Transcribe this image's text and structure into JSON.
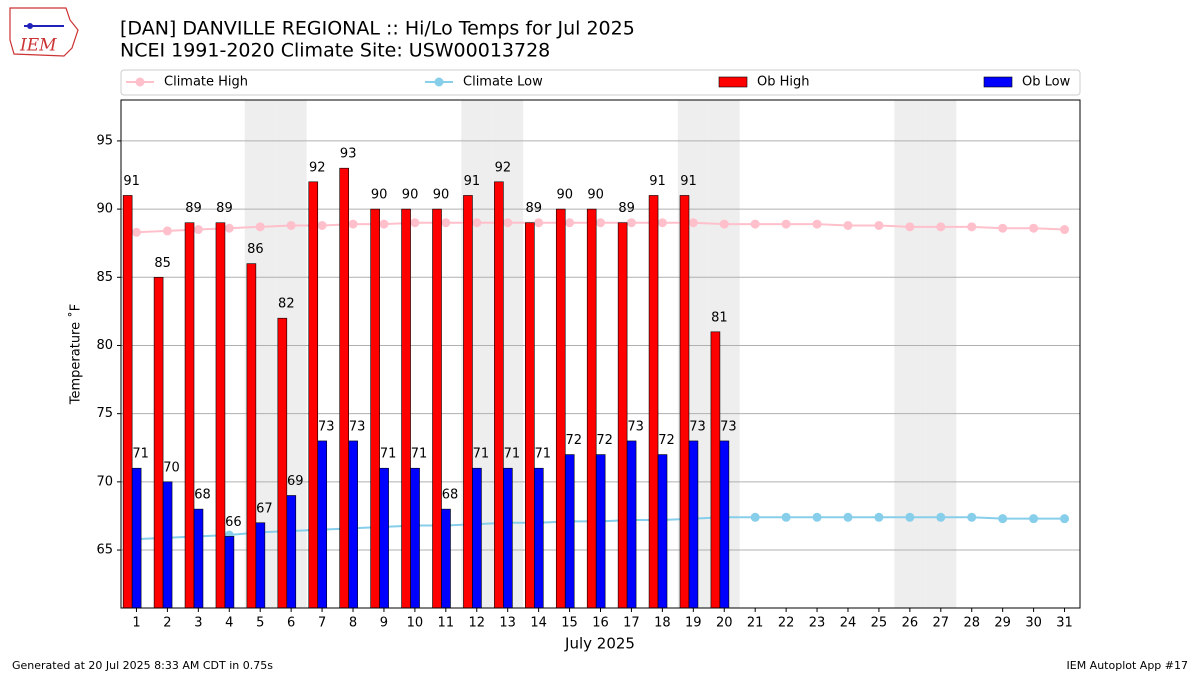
{
  "logo_text": "IEM",
  "footer_left": "Generated at 20 Jul 2025 8:33 AM CDT in 0.75s",
  "footer_right": "IEM Autoplot App #17",
  "chart_data": {
    "type": "bar",
    "title": "[DAN] DANVILLE REGIONAL :: Hi/Lo Temps for Jul 2025",
    "subtitle": "NCEI 1991-2020 Climate Site: USW00013728",
    "x_label": "July 2025",
    "y_label": "Temperature ˚F",
    "x": [
      1,
      2,
      3,
      4,
      5,
      6,
      7,
      8,
      9,
      10,
      11,
      12,
      13,
      14,
      15,
      16,
      17,
      18,
      19,
      20,
      21,
      22,
      23,
      24,
      25,
      26,
      27,
      28,
      29,
      30,
      31
    ],
    "xlim": [
      0.5,
      31.5
    ],
    "xticks": [
      1,
      2,
      3,
      4,
      5,
      6,
      7,
      8,
      9,
      10,
      11,
      12,
      13,
      14,
      15,
      16,
      17,
      18,
      19,
      20,
      21,
      22,
      23,
      24,
      25,
      26,
      27,
      28,
      29,
      30,
      31
    ],
    "ylim": [
      60.75,
      98
    ],
    "yticks": [
      65,
      70,
      75,
      80,
      85,
      90,
      95
    ],
    "grid": true,
    "shaded_days": [
      5,
      6,
      12,
      13,
      19,
      20,
      26,
      27
    ],
    "series": [
      {
        "name": "Climate High",
        "kind": "line",
        "color": "#ffc0cb",
        "values": [
          88.3,
          88.4,
          88.5,
          88.6,
          88.7,
          88.8,
          88.8,
          88.9,
          88.9,
          89.0,
          89.0,
          89.0,
          89.0,
          89.0,
          89.0,
          89.0,
          89.0,
          89.0,
          89.0,
          88.9,
          88.9,
          88.9,
          88.9,
          88.8,
          88.8,
          88.7,
          88.7,
          88.7,
          88.6,
          88.6,
          88.5
        ]
      },
      {
        "name": "Climate Low",
        "kind": "line",
        "color": "#87ceeb",
        "values": [
          65.8,
          65.9,
          66.0,
          66.1,
          66.3,
          66.4,
          66.5,
          66.6,
          66.7,
          66.8,
          66.8,
          66.9,
          67.0,
          67.0,
          67.1,
          67.1,
          67.2,
          67.2,
          67.3,
          67.4,
          67.4,
          67.4,
          67.4,
          67.4,
          67.4,
          67.4,
          67.4,
          67.4,
          67.3,
          67.3,
          67.3
        ]
      },
      {
        "name": "Ob High",
        "kind": "bar",
        "offset": -0.43,
        "color": "#ff0000",
        "values": [
          91,
          85,
          89,
          89,
          86,
          82,
          92,
          93,
          90,
          90,
          90,
          91,
          92,
          89,
          90,
          90,
          89,
          91,
          91,
          81,
          null,
          null,
          null,
          null,
          null,
          null,
          null,
          null,
          null,
          null,
          null
        ]
      },
      {
        "name": "Ob Low",
        "kind": "bar",
        "offset": -0.14,
        "color": "#0000ff",
        "values": [
          71,
          70,
          68,
          66,
          67,
          69,
          73,
          73,
          71,
          71,
          68,
          71,
          71,
          71,
          72,
          72,
          73,
          72,
          73,
          73,
          null,
          null,
          null,
          null,
          null,
          null,
          null,
          null,
          null,
          null,
          null
        ]
      }
    ]
  }
}
